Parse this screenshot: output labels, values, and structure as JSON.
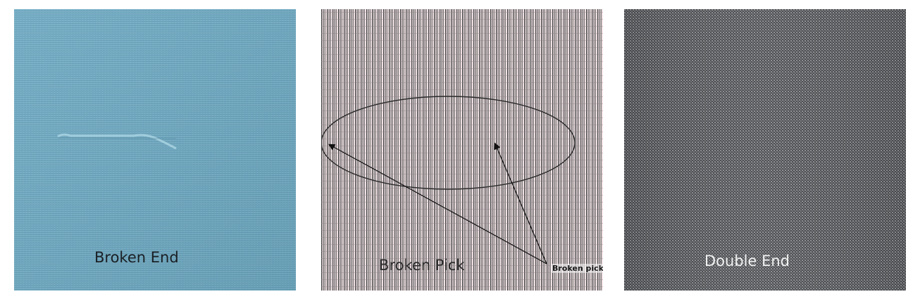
{
  "panels": [
    {
      "caption": "Broken End",
      "fabric_color": "#6fa9c1"
    },
    {
      "caption": "Broken Pick",
      "annotation": "Broken pick",
      "fabric_color": "#f1e3e6"
    },
    {
      "caption": "Double End",
      "fabric_color": "#5f6164"
    }
  ]
}
